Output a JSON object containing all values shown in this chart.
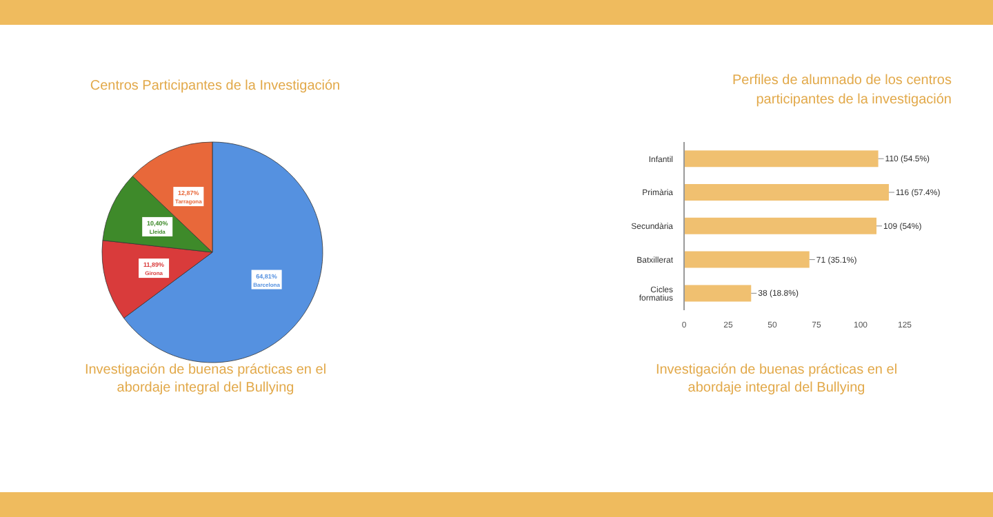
{
  "chart_data": [
    {
      "type": "pie",
      "title": "Centros Participantes de la Investigación",
      "categories": [
        "Barcelona",
        "Girona",
        "Lleida",
        "Tarragona"
      ],
      "values": [
        64.81,
        11.89,
        10.4,
        12.87
      ],
      "colors": [
        "#5591e0",
        "#d93b3b",
        "#3e8a2a",
        "#e8683a"
      ],
      "value_labels": [
        "64,81%",
        "11,89%",
        "10,40%",
        "12,87%"
      ],
      "annotations": [
        "Investigación de buenas prácticas en el abordaje integral del Bullying"
      ]
    },
    {
      "type": "bar",
      "orientation": "horizontal",
      "title": "Perfiles de alumnado de los centros participantes de la investigación",
      "categories": [
        "Infantil",
        "Primària",
        "Secundària",
        "Batxillerat",
        "Cicles formatius"
      ],
      "values": [
        110,
        116,
        109,
        71,
        38
      ],
      "color": "#f0c070",
      "value_labels": [
        "110 (54.5%)",
        "116 (57.4%)",
        "109 (54%)",
        "71 (35.1%)",
        "38 (18.8%)"
      ],
      "xlim": [
        0,
        125
      ],
      "xticks": [
        0,
        25,
        50,
        75,
        100,
        125
      ],
      "annotations": [
        "Investigación de buenas prácticas en el abordaje integral del Bullying"
      ]
    }
  ]
}
